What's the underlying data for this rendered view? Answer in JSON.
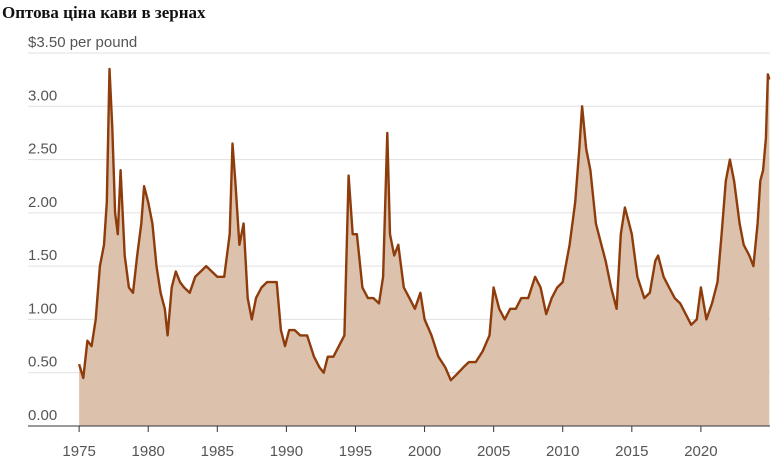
{
  "chart_data": {
    "type": "area",
    "title": "Оптова ціна кави в зернах",
    "color": "#8e3c0b",
    "fill_color": "#dcc1ad",
    "xlim": [
      1971.3,
      2025
    ],
    "ylim": [
      0,
      3.5
    ],
    "xticks": [
      1975,
      1980,
      1985,
      1990,
      1995,
      2000,
      2005,
      2010,
      2015,
      2020
    ],
    "yticks": [
      {
        "value": 0,
        "label": "0.00"
      },
      {
        "value": 0.5,
        "label": "0.50"
      },
      {
        "value": 1,
        "label": "1.00"
      },
      {
        "value": 1.5,
        "label": "1.50"
      },
      {
        "value": 2,
        "label": "2.00"
      },
      {
        "value": 2.5,
        "label": "2.50"
      },
      {
        "value": 3,
        "label": "3.00"
      },
      {
        "value": 3.5,
        "label": "$3.50 per pound"
      }
    ],
    "grid": true,
    "x": [
      1975.0,
      1975.3,
      1975.6,
      1975.9,
      1976.2,
      1976.5,
      1976.8,
      1977.0,
      1977.2,
      1977.4,
      1977.6,
      1977.8,
      1978.0,
      1978.3,
      1978.6,
      1978.9,
      1979.2,
      1979.5,
      1979.7,
      1980.0,
      1980.3,
      1980.6,
      1980.9,
      1981.2,
      1981.4,
      1981.7,
      1982.0,
      1982.3,
      1982.6,
      1983.0,
      1983.4,
      1983.8,
      1984.2,
      1984.6,
      1985.0,
      1985.5,
      1985.9,
      1986.1,
      1986.3,
      1986.6,
      1986.9,
      1987.2,
      1987.5,
      1987.8,
      1988.2,
      1988.6,
      1989.0,
      1989.3,
      1989.6,
      1989.9,
      1990.2,
      1990.6,
      1991.0,
      1991.5,
      1992.0,
      1992.4,
      1992.7,
      1993.0,
      1993.4,
      1993.8,
      1994.2,
      1994.5,
      1994.8,
      1995.1,
      1995.5,
      1995.9,
      1996.3,
      1996.7,
      1997.0,
      1997.3,
      1997.5,
      1997.8,
      1998.1,
      1998.5,
      1998.9,
      1999.3,
      1999.7,
      2000.0,
      2000.5,
      2001.0,
      2001.5,
      2001.9,
      2002.3,
      2002.8,
      2003.2,
      2003.7,
      2004.2,
      2004.7,
      2005.0,
      2005.4,
      2005.8,
      2006.2,
      2006.6,
      2007.0,
      2007.5,
      2008.0,
      2008.4,
      2008.8,
      2009.2,
      2009.6,
      2010.0,
      2010.5,
      2010.9,
      2011.2,
      2011.4,
      2011.7,
      2012.0,
      2012.4,
      2012.8,
      2013.1,
      2013.5,
      2013.9,
      2014.2,
      2014.5,
      2014.8,
      2015.0,
      2015.4,
      2015.9,
      2016.3,
      2016.7,
      2016.9,
      2017.3,
      2017.7,
      2018.1,
      2018.5,
      2018.9,
      2019.3,
      2019.7,
      2020.0,
      2020.4,
      2020.8,
      2021.2,
      2021.5,
      2021.8,
      2022.1,
      2022.4,
      2022.8,
      2023.1,
      2023.5,
      2023.8,
      2024.1,
      2024.3,
      2024.5,
      2024.7,
      2024.85,
      2024.95
    ],
    "values": [
      0.58,
      0.45,
      0.8,
      0.75,
      1.0,
      1.5,
      1.7,
      2.1,
      3.35,
      2.8,
      2.0,
      1.8,
      2.4,
      1.6,
      1.3,
      1.25,
      1.6,
      1.9,
      2.25,
      2.1,
      1.9,
      1.5,
      1.25,
      1.1,
      0.85,
      1.3,
      1.45,
      1.35,
      1.3,
      1.25,
      1.4,
      1.45,
      1.5,
      1.45,
      1.4,
      1.4,
      1.8,
      2.65,
      2.3,
      1.7,
      1.9,
      1.2,
      1.0,
      1.2,
      1.3,
      1.35,
      1.35,
      1.35,
      0.9,
      0.75,
      0.9,
      0.9,
      0.85,
      0.85,
      0.65,
      0.55,
      0.5,
      0.65,
      0.65,
      0.75,
      0.85,
      2.35,
      1.8,
      1.8,
      1.3,
      1.2,
      1.2,
      1.15,
      1.4,
      2.75,
      1.8,
      1.6,
      1.7,
      1.3,
      1.2,
      1.1,
      1.25,
      1.0,
      0.85,
      0.65,
      0.55,
      0.43,
      0.48,
      0.55,
      0.6,
      0.6,
      0.7,
      0.85,
      1.3,
      1.1,
      1.0,
      1.1,
      1.1,
      1.2,
      1.2,
      1.4,
      1.3,
      1.05,
      1.2,
      1.3,
      1.35,
      1.7,
      2.1,
      2.6,
      3.0,
      2.6,
      2.4,
      1.9,
      1.7,
      1.55,
      1.3,
      1.1,
      1.8,
      2.05,
      1.9,
      1.8,
      1.4,
      1.2,
      1.25,
      1.55,
      1.6,
      1.4,
      1.3,
      1.2,
      1.15,
      1.05,
      0.95,
      1.0,
      1.3,
      1.0,
      1.15,
      1.35,
      1.8,
      2.3,
      2.5,
      2.3,
      1.9,
      1.7,
      1.6,
      1.5,
      1.9,
      2.3,
      2.4,
      2.7,
      3.3,
      3.25
    ]
  }
}
